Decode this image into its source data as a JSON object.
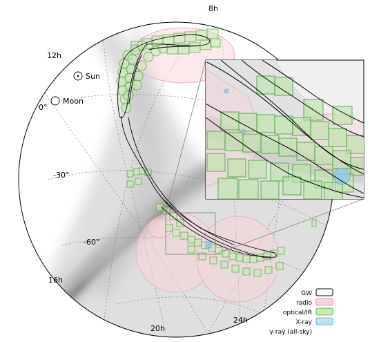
{
  "ra_labels": {
    "ra_8h": "8h",
    "ra_12h": "12h",
    "ra_16h": "16h",
    "ra_20h": "20h",
    "ra_24h": "24h"
  },
  "dec_labels": {
    "dec_0": "0°",
    "dec_m30": "-30°",
    "dec_m60": "-60°"
  },
  "markers": {
    "sun": "Sun",
    "moon": "Moon"
  },
  "legend": {
    "items": [
      {
        "label": "GW",
        "fill": "#ffffff",
        "stroke": "#000000"
      },
      {
        "label": "radio",
        "fill": "#f7d3da",
        "stroke": "#d58a9a"
      },
      {
        "label": "optical/IR",
        "fill": "#c8ebb5",
        "stroke": "#4aa83a"
      },
      {
        "label": "X-ray",
        "fill": "#bfe3f3",
        "stroke": "#5aa8d0"
      },
      {
        "label": "γ-ray (all-sky)",
        "fill": "none",
        "stroke": "none"
      }
    ]
  },
  "colors": {
    "gw_contour": "#000000",
    "radio": "#f4c9d2",
    "optical": "#6cc04a",
    "xray": "#8cc8ec",
    "milky_way": "#8a8a8a",
    "grid": "#777777"
  }
}
